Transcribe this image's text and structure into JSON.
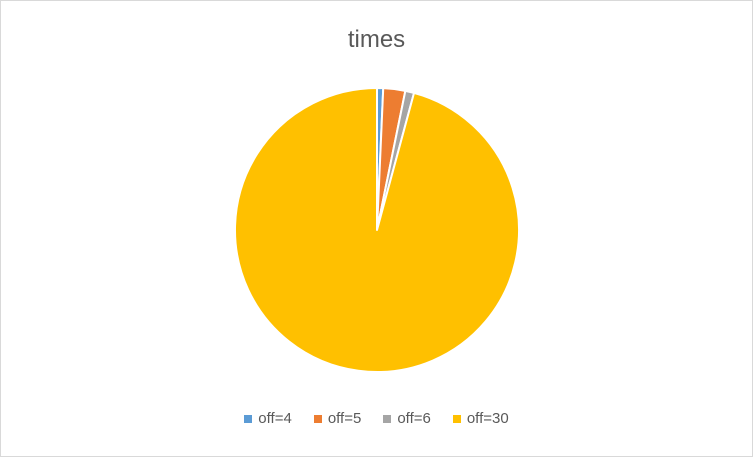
{
  "chart_data": {
    "type": "pie",
    "title": "times",
    "legend_position": "bottom",
    "series": [
      {
        "name": "off=4",
        "value": 0.7,
        "color": "#5B9BD5"
      },
      {
        "name": "off=5",
        "value": 2.5,
        "color": "#ED7D31"
      },
      {
        "name": "off=6",
        "value": 1.0,
        "color": "#A5A5A5"
      },
      {
        "name": "off=30",
        "value": 95.8,
        "color": "#FFC000"
      }
    ]
  }
}
